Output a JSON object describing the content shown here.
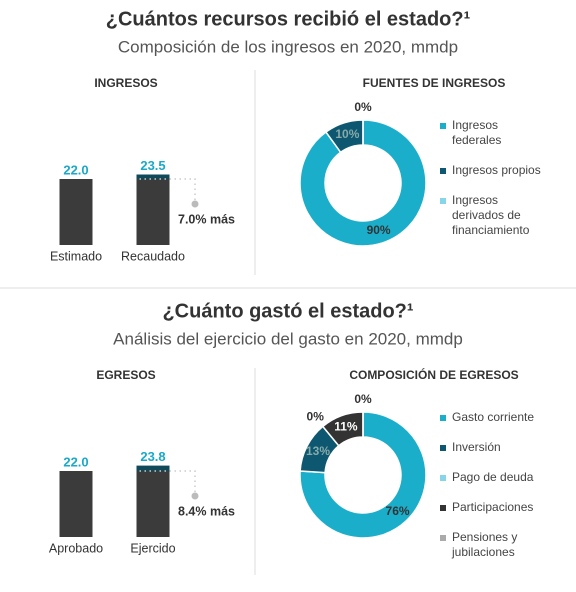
{
  "sections": [
    {
      "title": "¿Cuántos recursos recibió el estado?¹",
      "subtitle": "Composición de los ingresos en 2020, mmdp"
    },
    {
      "title": "¿Cuánto gastó el estado?¹",
      "subtitle": "Análisis del ejercicio del gasto en 2020, mmdp"
    }
  ],
  "chart_data": [
    {
      "type": "bar",
      "title": "INGRESOS",
      "categories": [
        "Estimado",
        "Recaudado"
      ],
      "values": [
        22.0,
        23.5
      ],
      "value_labels": [
        "22.0",
        "23.5"
      ],
      "colors": [
        "#3b3b3b",
        "#0f4a5a"
      ],
      "value_label_color": "#1aa9c8",
      "annotation": "7.0% más"
    },
    {
      "type": "donut",
      "title": "FUENTES DE INGRESOS",
      "categories": [
        "Ingresos federales",
        "Ingresos propios",
        "Ingresos derivados de financiamiento"
      ],
      "values": [
        90,
        10,
        0
      ],
      "value_labels": [
        "90%",
        "10%",
        "0%"
      ],
      "colors": [
        "#1aaecb",
        "#0d5870",
        "#86d5e8"
      ],
      "legend": "right"
    },
    {
      "type": "bar",
      "title": "EGRESOS",
      "categories": [
        "Aprobado",
        "Ejercido"
      ],
      "values": [
        22.0,
        23.8
      ],
      "value_labels": [
        "22.0",
        "23.8"
      ],
      "colors": [
        "#3b3b3b",
        "#0f4a5a"
      ],
      "value_label_color": "#1aa9c8",
      "annotation": "8.4% más"
    },
    {
      "type": "donut",
      "title": "COMPOSICIÓN DE EGRESOS",
      "categories": [
        "Gasto corriente",
        "Inversión",
        "Pago de deuda",
        "Participaciones",
        "Pensiones y jubilaciones"
      ],
      "values": [
        76,
        13,
        0,
        11,
        0
      ],
      "value_labels": [
        "76%",
        "13%",
        "0%",
        "11%",
        "0%"
      ],
      "colors": [
        "#1aaecb",
        "#0d5870",
        "#86d5e8",
        "#333333",
        "#aaaaaa"
      ],
      "legend": "right"
    }
  ]
}
